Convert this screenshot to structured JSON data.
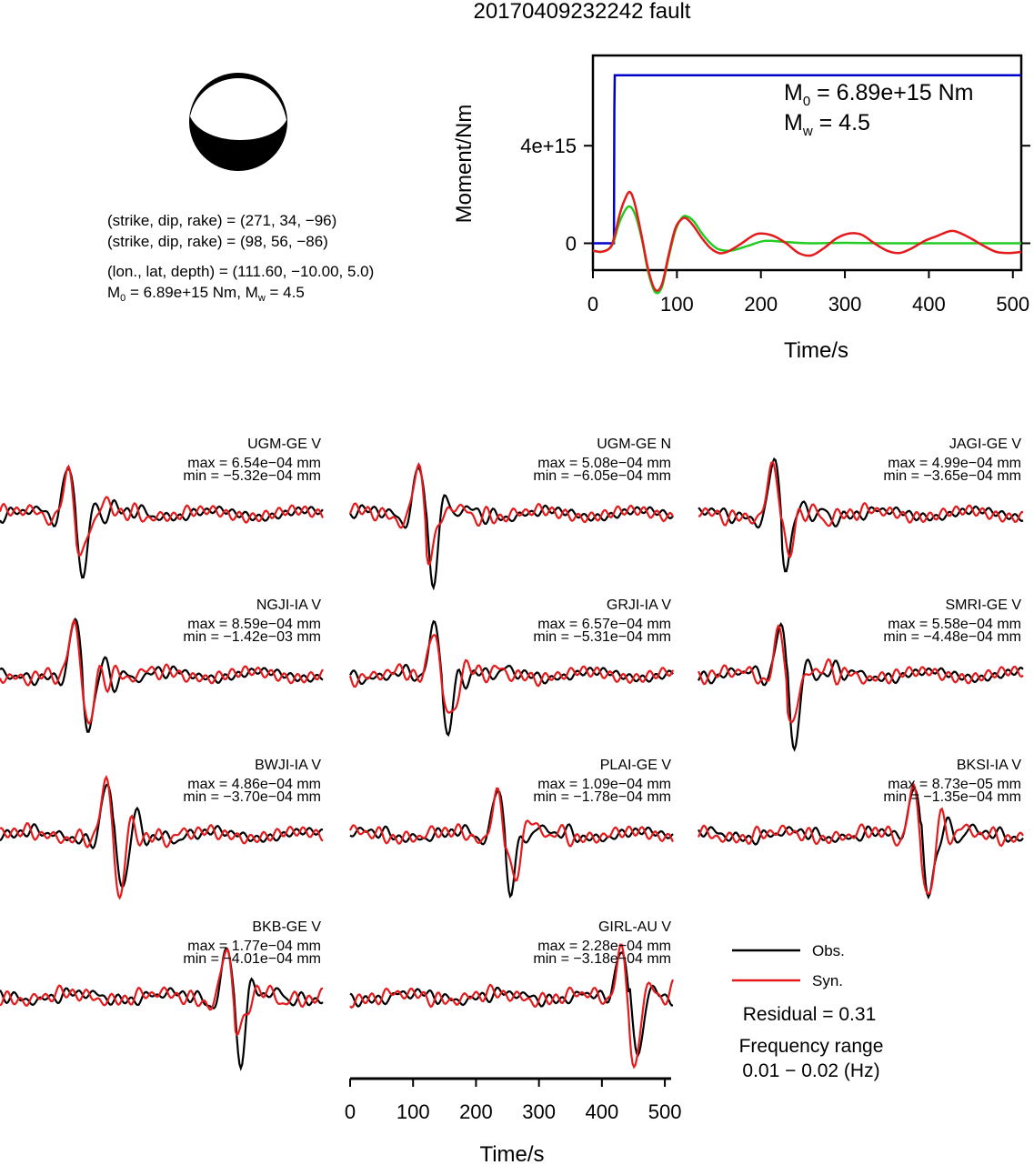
{
  "title": "20170409232242 fault",
  "mechanism": {
    "line1": "(strike, dip, rake) = (271, 34, −96)",
    "line2": "(strike, dip, rake) = (98, 56, −86)",
    "line3": "(lon., lat, depth) = (111.60, −10.00, 5.0)",
    "line4_prefix": "M",
    "line4_sub": "0",
    "line4_rest": " = 6.89e+15 Nm, M",
    "line4_sub2": "w",
    "line4_end": " = 4.5"
  },
  "colors": {
    "observed": "#000000",
    "synthetic": "#e41a1c",
    "moment": "#0000cc",
    "stf": "#22cc22"
  },
  "chart_data": [
    {
      "type": "line",
      "name": "moment-rate-plot",
      "xlabel": "Time/s",
      "ylabel": "Moment/Nm",
      "xlim": [
        0,
        510
      ],
      "ylim": [
        -1100000000000000.0,
        7700000000000000.0
      ],
      "xticks": [
        0,
        100,
        200,
        300,
        400,
        500
      ],
      "yticks": [
        {
          "value": 4000000000000000.0,
          "label": "4e+15"
        },
        {
          "value": 0,
          "label": "0"
        }
      ],
      "annotation": {
        "m0_prefix": "M",
        "m0_sub": "0",
        "m0_rest": " = 6.89e+15 Nm",
        "mw_prefix": "M",
        "mw_sub": "w",
        "mw_rest": " = 4.5"
      },
      "series": [
        {
          "role": "cumulative-moment",
          "x": [
            0,
            25,
            25.5,
            26,
            510
          ],
          "y": [
            0,
            0,
            5500000000000000.0,
            6890000000000000.0,
            6890000000000000.0
          ]
        },
        {
          "role": "source-time-function-green",
          "x": [
            0,
            10,
            20,
            25,
            32,
            42,
            50,
            58,
            66,
            74,
            82,
            90,
            98,
            106,
            112,
            120,
            130,
            140,
            150,
            165,
            185,
            205,
            230,
            260,
            300,
            350,
            400,
            450,
            510
          ],
          "y": [
            -300000000000000.0,
            -350000000000000.0,
            -200000000000000.0,
            100000000000000.0,
            900000000000000.0,
            1500000000000000.0,
            1200000000000000.0,
            200000000000000.0,
            -1200000000000000.0,
            -2000000000000000.0,
            -1800000000000000.0,
            -600000000000000.0,
            500000000000000.0,
            1050000000000000.0,
            1100000000000000.0,
            900000000000000.0,
            400000000000000.0,
            0.0,
            -250000000000000.0,
            -300000000000000.0,
            -100000000000000.0,
            100000000000000.0,
            50000000000000.0,
            0.0,
            20000000000000.0,
            0.0,
            0.0,
            0.0,
            0.0
          ]
        },
        {
          "role": "source-time-function-red",
          "x": [
            0,
            10,
            20,
            25,
            32,
            38,
            44,
            50,
            58,
            66,
            74,
            82,
            90,
            98,
            106,
            112,
            120,
            130,
            140,
            150,
            160,
            175,
            190,
            200,
            215,
            230,
            245,
            260,
            275,
            290,
            305,
            320,
            335,
            350,
            365,
            380,
            395,
            410,
            425,
            435,
            450,
            465,
            480,
            495,
            510
          ],
          "y": [
            -300000000000000.0,
            -350000000000000.0,
            -200000000000000.0,
            200000000000000.0,
            1200000000000000.0,
            1800000000000000.0,
            2100000000000000.0,
            1600000000000000.0,
            300000000000000.0,
            -1100000000000000.0,
            -1900000000000000.0,
            -1700000000000000.0,
            -500000000000000.0,
            600000000000000.0,
            1000000000000000.0,
            1000000000000000.0,
            700000000000000.0,
            200000000000000.0,
            -200000000000000.0,
            -400000000000000.0,
            -350000000000000.0,
            -50000000000000.0,
            300000000000000.0,
            400000000000000.0,
            300000000000000.0,
            0.0,
            -400000000000000.0,
            -500000000000000.0,
            -200000000000000.0,
            200000000000000.0,
            400000000000000.0,
            350000000000000.0,
            0.0,
            -300000000000000.0,
            -400000000000000.0,
            -200000000000000.0,
            100000000000000.0,
            300000000000000.0,
            500000000000000.0,
            450000000000000.0,
            200000000000000.0,
            -100000000000000.0,
            -350000000000000.0,
            -400000000000000.0,
            -350000000000000.0
          ]
        }
      ]
    },
    {
      "type": "line",
      "name": "waveform-grid",
      "xlabel": "Time/s",
      "xlim": [
        0,
        510
      ],
      "xticks": [
        0,
        100,
        200,
        300,
        400,
        500
      ],
      "stations": [
        {
          "label": "UGM-GE V",
          "max": "max = 6.54e−04 mm",
          "min": "min = −5.32e−04 mm",
          "main": 120,
          "amp": 1.0
        },
        {
          "label": "UGM-GE N",
          "max": "max = 5.08e−04 mm",
          "min": "min = −6.05e−04 mm",
          "main": 120,
          "amp": 1.0
        },
        {
          "label": "JAGI-GE V",
          "max": "max = 4.99e−04 mm",
          "min": "min = −3.65e−04 mm",
          "main": 130,
          "amp": 1.0
        },
        {
          "label": "NGJI-IA V",
          "max": "max = 8.59e−04 mm",
          "min": "min = −1.42e−03 mm",
          "main": 130,
          "amp": 1.0
        },
        {
          "label": "GRJI-IA V",
          "max": "max = 6.57e−04 mm",
          "min": "min = −5.31e−04 mm",
          "main": 145,
          "amp": 1.0
        },
        {
          "label": "SMRI-GE V",
          "max": "max = 5.58e−04 mm",
          "min": "min = −4.48e−04 mm",
          "main": 140,
          "amp": 1.0
        },
        {
          "label": "BWJI-IA V",
          "max": "max = 4.86e−04 mm",
          "min": "min = −3.70e−04 mm",
          "main": 180,
          "amp": 1.0
        },
        {
          "label": "PLAI-GE V",
          "max": "max = 1.09e−04 mm",
          "min": "min = −1.78e−04 mm",
          "main": 245,
          "amp": 1.0
        },
        {
          "label": "BKSI-IA V",
          "max": "max = 8.73e−05 mm",
          "min": "min = −1.35e−04 mm",
          "main": 350,
          "amp": 1.0
        },
        {
          "label": "BKB-GE V",
          "max": "max = 1.77e−04 mm",
          "min": "min = −4.01e−04 mm",
          "main": 370,
          "amp": 1.0
        },
        {
          "label": "GIRL-AU V",
          "max": "max = 2.28e−04 mm",
          "min": "min = −3.18e−04 mm",
          "main": 440,
          "amp": 1.0
        }
      ]
    }
  ],
  "legend": {
    "obs": "Obs.",
    "syn": "Syn."
  },
  "residual": "Residual = 0.31",
  "freq_title": "Frequency range",
  "freq_value": "0.01 − 0.02 (Hz)"
}
